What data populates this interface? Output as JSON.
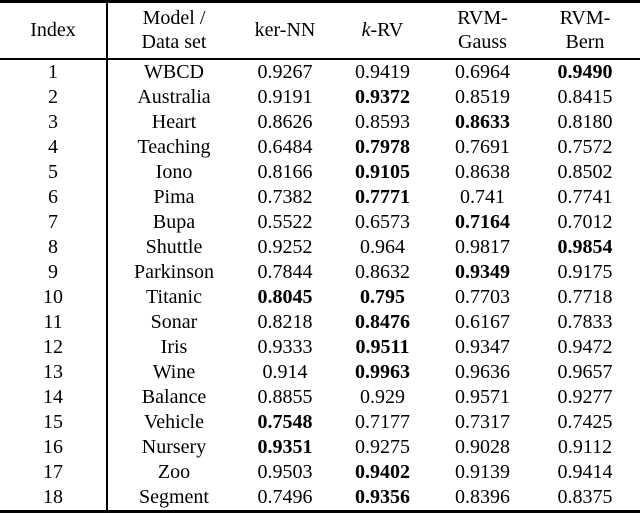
{
  "colors": {
    "text": "#000000",
    "background": "#ffffff",
    "rule": "#000000"
  },
  "table": {
    "header": [
      {
        "lines": [
          "Index"
        ]
      },
      {
        "lines": [
          "Model /",
          "Data set"
        ]
      },
      {
        "lines": [
          "ker-NN"
        ]
      },
      {
        "italic": "k",
        "rest": "-RV"
      },
      {
        "lines": [
          "RVM-",
          "Gauss"
        ]
      },
      {
        "lines": [
          "RVM-",
          "Bern"
        ]
      }
    ],
    "rows": [
      {
        "index": "1",
        "dataset": "WBCD",
        "values": [
          "0.9267",
          "0.9419",
          "0.6964",
          "0.9490"
        ],
        "bold": [
          3
        ]
      },
      {
        "index": "2",
        "dataset": "Australia",
        "values": [
          "0.9191",
          "0.9372",
          "0.8519",
          "0.8415"
        ],
        "bold": [
          1
        ]
      },
      {
        "index": "3",
        "dataset": "Heart",
        "values": [
          "0.8626",
          "0.8593",
          "0.8633",
          "0.8180"
        ],
        "bold": [
          2
        ]
      },
      {
        "index": "4",
        "dataset": "Teaching",
        "values": [
          "0.6484",
          "0.7978",
          "0.7691",
          "0.7572"
        ],
        "bold": [
          1
        ]
      },
      {
        "index": "5",
        "dataset": "Iono",
        "values": [
          "0.8166",
          "0.9105",
          "0.8638",
          "0.8502"
        ],
        "bold": [
          1
        ]
      },
      {
        "index": "6",
        "dataset": "Pima",
        "values": [
          "0.7382",
          "0.7771",
          "0.741",
          "0.7741"
        ],
        "bold": [
          1
        ]
      },
      {
        "index": "7",
        "dataset": "Bupa",
        "values": [
          "0.5522",
          "0.6573",
          "0.7164",
          "0.7012"
        ],
        "bold": [
          2
        ]
      },
      {
        "index": "8",
        "dataset": "Shuttle",
        "values": [
          "0.9252",
          "0.964",
          "0.9817",
          "0.9854"
        ],
        "bold": [
          3
        ]
      },
      {
        "index": "9",
        "dataset": "Parkinson",
        "values": [
          "0.7844",
          "0.8632",
          "0.9349",
          "0.9175"
        ],
        "bold": [
          2
        ]
      },
      {
        "index": "10",
        "dataset": "Titanic",
        "values": [
          "0.8045",
          "0.795",
          "0.7703",
          "0.7718"
        ],
        "bold": [
          0,
          1
        ]
      },
      {
        "index": "11",
        "dataset": "Sonar",
        "values": [
          "0.8218",
          "0.8476",
          "0.6167",
          "0.7833"
        ],
        "bold": [
          1
        ]
      },
      {
        "index": "12",
        "dataset": "Iris",
        "values": [
          "0.9333",
          "0.9511",
          "0.9347",
          "0.9472"
        ],
        "bold": [
          1
        ]
      },
      {
        "index": "13",
        "dataset": "Wine",
        "values": [
          "0.914",
          "0.9963",
          "0.9636",
          "0.9657"
        ],
        "bold": [
          1
        ]
      },
      {
        "index": "14",
        "dataset": "Balance",
        "values": [
          "0.8855",
          "0.929",
          "0.9571",
          "0.9277"
        ],
        "bold": []
      },
      {
        "index": "15",
        "dataset": "Vehicle",
        "values": [
          "0.7548",
          "0.7177",
          "0.7317",
          "0.7425"
        ],
        "bold": [
          0
        ]
      },
      {
        "index": "16",
        "dataset": "Nursery",
        "values": [
          "0.9351",
          "0.9275",
          "0.9028",
          "0.9112"
        ],
        "bold": [
          0
        ]
      },
      {
        "index": "17",
        "dataset": "Zoo",
        "values": [
          "0.9503",
          "0.9402",
          "0.9139",
          "0.9414"
        ],
        "bold": [
          1
        ]
      },
      {
        "index": "18",
        "dataset": "Segment",
        "values": [
          "0.7496",
          "0.9356",
          "0.8396",
          "0.8375"
        ],
        "bold": [
          1
        ]
      }
    ]
  }
}
